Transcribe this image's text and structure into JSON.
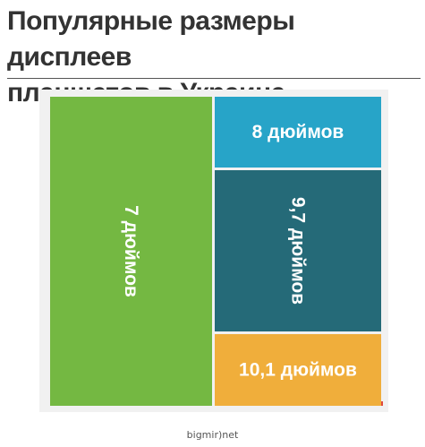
{
  "title": "Популярные размеры дисплеев\nпланшетов в Украине",
  "source": "bigmir)net",
  "colors": {
    "panel": "#f1f1f1",
    "accent": "#e0483d"
  },
  "chart_data": {
    "type": "treemap",
    "title": "Популярные размеры дисплеев планшетов в Украине",
    "items": [
      {
        "label": "7 дюймов",
        "share": 0.49,
        "color": "#74b842"
      },
      {
        "label": "8 дюймов",
        "share": 0.119,
        "color": "#27a4c8"
      },
      {
        "label": "9,7 дюймов",
        "share": 0.271,
        "color": "#256a78"
      },
      {
        "label": "10,1 дюймов",
        "share": 0.12,
        "color": "#f0ae3b"
      }
    ]
  }
}
